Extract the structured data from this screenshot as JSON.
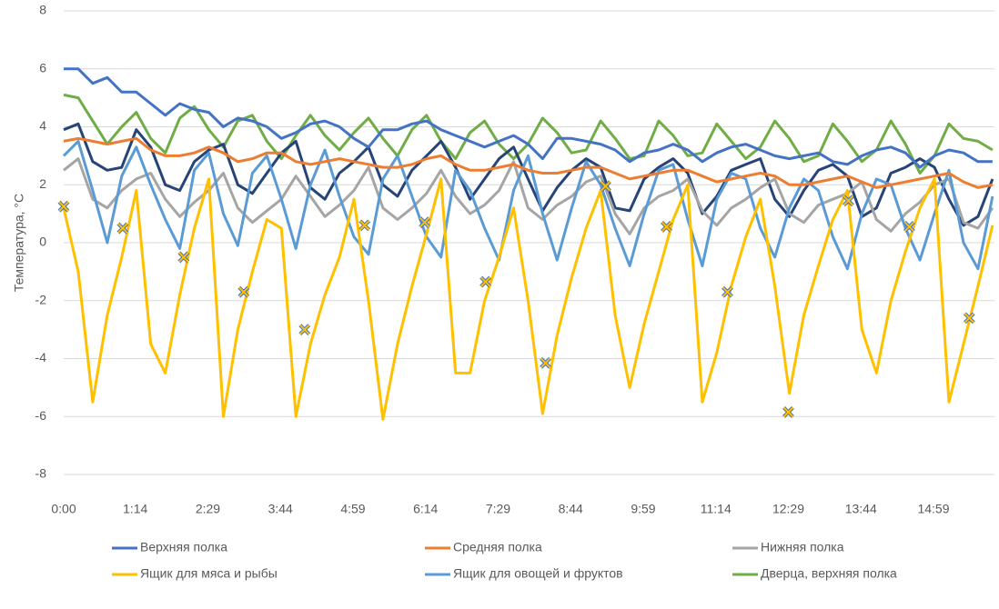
{
  "chart_data": {
    "type": "line",
    "y_label": "Температура, °C",
    "ylim": [
      -8,
      8
    ],
    "yticks": [
      -8,
      -6,
      -4,
      -2,
      0,
      2,
      4,
      6,
      8
    ],
    "grid": true,
    "xlim": [
      0,
      962
    ],
    "xticks": [
      {
        "value": 0,
        "label": "0:00"
      },
      {
        "value": 74,
        "label": "1:14"
      },
      {
        "value": 149,
        "label": "2:29"
      },
      {
        "value": 224,
        "label": "3:44"
      },
      {
        "value": 299,
        "label": "4:59"
      },
      {
        "value": 374,
        "label": "6:14"
      },
      {
        "value": 449,
        "label": "7:29"
      },
      {
        "value": 524,
        "label": "8:44"
      },
      {
        "value": 599,
        "label": "9:59"
      },
      {
        "value": 674,
        "label": "11:14"
      },
      {
        "value": 749,
        "label": "12:29"
      },
      {
        "value": 824,
        "label": "13:44"
      },
      {
        "value": 899,
        "label": "14:59"
      }
    ],
    "x": [
      0,
      15,
      30,
      45,
      60,
      75,
      90,
      105,
      120,
      135,
      150,
      165,
      180,
      195,
      210,
      225,
      240,
      255,
      270,
      285,
      300,
      315,
      330,
      345,
      360,
      375,
      390,
      405,
      420,
      435,
      450,
      465,
      480,
      495,
      510,
      525,
      540,
      555,
      570,
      585,
      600,
      615,
      630,
      645,
      660,
      675,
      690,
      705,
      720,
      735,
      750,
      765,
      780,
      795,
      810,
      825,
      840,
      855,
      870,
      885,
      900,
      915,
      930,
      945,
      960
    ],
    "series": [
      {
        "name": "Верхняя полка",
        "color": "#4472c4",
        "values": [
          6.0,
          6.0,
          5.5,
          5.7,
          5.2,
          5.2,
          4.8,
          4.4,
          4.8,
          4.6,
          4.5,
          4.0,
          4.3,
          4.2,
          4.0,
          3.6,
          3.8,
          4.1,
          4.2,
          4.0,
          3.6,
          3.3,
          3.9,
          3.9,
          4.1,
          4.2,
          3.9,
          3.7,
          3.5,
          3.3,
          3.5,
          3.7,
          3.4,
          2.9,
          3.6,
          3.6,
          3.5,
          3.4,
          3.2,
          2.8,
          3.1,
          3.2,
          3.4,
          3.2,
          2.8,
          3.1,
          3.3,
          3.4,
          3.2,
          3.0,
          2.9,
          3.0,
          3.1,
          2.8,
          2.7,
          3.0,
          3.2,
          3.3,
          3.1,
          2.6,
          3.0,
          3.2,
          3.1,
          2.8,
          2.8
        ]
      },
      {
        "name": "Средняя полка",
        "color": "#ed7d31",
        "values": [
          3.5,
          3.6,
          3.5,
          3.4,
          3.5,
          3.6,
          3.2,
          3.0,
          3.0,
          3.1,
          3.3,
          3.1,
          2.8,
          2.9,
          3.1,
          3.1,
          2.8,
          2.7,
          2.8,
          2.9,
          2.8,
          2.7,
          2.6,
          2.6,
          2.7,
          2.9,
          3.0,
          2.7,
          2.5,
          2.5,
          2.6,
          2.7,
          2.5,
          2.4,
          2.4,
          2.5,
          2.6,
          2.6,
          2.4,
          2.2,
          2.3,
          2.4,
          2.5,
          2.5,
          2.3,
          2.1,
          2.2,
          2.3,
          2.4,
          2.3,
          2.0,
          2.0,
          2.1,
          2.2,
          2.3,
          2.1,
          1.9,
          2.0,
          2.1,
          2.2,
          2.3,
          2.4,
          2.1,
          1.9,
          2.0
        ]
      },
      {
        "name": "Нижняя полка",
        "color": "#a5a5a5",
        "values": [
          2.5,
          2.9,
          1.5,
          1.2,
          1.8,
          2.2,
          2.4,
          1.5,
          0.9,
          1.4,
          1.8,
          2.4,
          1.2,
          0.7,
          1.1,
          1.5,
          2.3,
          1.6,
          0.9,
          1.3,
          1.8,
          2.6,
          1.2,
          0.8,
          1.2,
          1.7,
          2.5,
          1.6,
          1.0,
          1.3,
          1.8,
          2.8,
          1.2,
          0.8,
          1.3,
          1.6,
          2.1,
          2.3,
          1.0,
          0.3,
          1.2,
          1.6,
          1.8,
          2.2,
          1.1,
          0.6,
          1.2,
          1.5,
          1.9,
          2.2,
          1.0,
          0.7,
          1.3,
          1.5,
          1.7,
          2.1,
          0.8,
          0.4,
          1.0,
          1.4,
          2.0,
          2.2,
          0.7,
          0.5,
          1.2
        ]
      },
      {
        "name": "Ящик для мяса и рыбы",
        "color": "#ffc000",
        "values": [
          1.2,
          -1.0,
          -5.5,
          -2.5,
          -0.5,
          1.8,
          -3.5,
          -4.5,
          -1.8,
          0.5,
          2.2,
          -6.0,
          -3.0,
          -1.0,
          0.8,
          0.5,
          -6.0,
          -3.5,
          -1.8,
          -0.5,
          1.5,
          -2.0,
          -6.1,
          -3.5,
          -1.5,
          0.3,
          2.2,
          -4.5,
          -4.5,
          -2.0,
          -0.5,
          1.2,
          -2.0,
          -5.9,
          -3.2,
          -1.2,
          0.5,
          1.8,
          -2.5,
          -5.0,
          -2.8,
          -1.0,
          0.8,
          2.0,
          -5.5,
          -3.8,
          -1.5,
          0.2,
          1.5,
          -1.5,
          -5.2,
          -2.5,
          -0.8,
          0.8,
          1.8,
          -3.0,
          -4.5,
          -2.0,
          -0.3,
          1.2,
          2.2,
          -5.5,
          -3.5,
          -1.5,
          0.6
        ]
      },
      {
        "name": "Ящик для овощей и фруктов",
        "color": "#5b9bd5",
        "values": [
          3.0,
          3.5,
          1.8,
          0.0,
          2.3,
          3.3,
          2.0,
          0.8,
          -0.2,
          2.5,
          3.1,
          1.0,
          -0.1,
          2.4,
          3.0,
          1.5,
          -0.2,
          2.0,
          3.2,
          1.6,
          0.2,
          -0.4,
          2.2,
          3.0,
          1.6,
          0.2,
          -0.5,
          2.5,
          1.8,
          0.5,
          -0.6,
          1.8,
          3.0,
          1.0,
          -0.6,
          1.2,
          2.8,
          2.0,
          0.5,
          -0.8,
          1.0,
          2.5,
          2.7,
          0.8,
          -0.8,
          1.5,
          2.4,
          2.2,
          0.5,
          -0.5,
          1.2,
          2.2,
          1.8,
          0.2,
          -0.9,
          1.0,
          2.2,
          2.0,
          0.5,
          -0.6,
          1.0,
          2.5,
          0.0,
          -0.9,
          1.6
        ]
      },
      {
        "name": "Дверца, верхняя полка",
        "color": "#70ad47",
        "values": [
          5.1,
          5.0,
          4.2,
          3.4,
          4.0,
          4.5,
          3.6,
          3.1,
          4.3,
          4.7,
          3.9,
          3.3,
          4.2,
          4.4,
          3.5,
          2.9,
          3.7,
          4.4,
          3.7,
          3.2,
          3.8,
          4.3,
          3.6,
          3.0,
          3.9,
          4.4,
          3.5,
          2.9,
          3.8,
          4.2,
          3.4,
          2.9,
          3.4,
          4.3,
          3.8,
          3.1,
          3.2,
          4.2,
          3.6,
          2.9,
          3.0,
          4.2,
          3.7,
          3.0,
          3.1,
          4.1,
          3.5,
          2.9,
          3.3,
          4.2,
          3.6,
          2.8,
          3.0,
          4.1,
          3.5,
          2.8,
          3.2,
          4.2,
          3.4,
          2.4,
          3.0,
          4.1,
          3.6,
          3.5,
          3.2
        ]
      },
      {
        "color": "#264478",
        "values": [
          3.9,
          4.1,
          2.8,
          2.5,
          2.6,
          3.9,
          3.3,
          2.0,
          1.8,
          2.8,
          3.2,
          3.4,
          2.0,
          1.7,
          2.4,
          3.1,
          3.5,
          1.9,
          1.5,
          2.4,
          2.8,
          3.3,
          2.0,
          1.6,
          2.5,
          3.0,
          3.5,
          2.6,
          1.5,
          2.2,
          2.9,
          3.3,
          2.2,
          1.1,
          1.9,
          2.5,
          2.9,
          2.6,
          1.2,
          1.1,
          2.2,
          2.6,
          2.9,
          2.4,
          1.0,
          1.6,
          2.5,
          2.7,
          2.9,
          1.5,
          0.9,
          1.8,
          2.5,
          2.7,
          2.3,
          0.9,
          1.2,
          2.4,
          2.6,
          2.9,
          2.6,
          1.5,
          0.6,
          0.9,
          2.2
        ]
      },
      {
        "color": "#4472c4",
        "fill": "#ffc000",
        "line": false,
        "marker": "x",
        "x": [
          0,
          61,
          124,
          186,
          249,
          311,
          373,
          436,
          498,
          560,
          623,
          686,
          749,
          811,
          874,
          936
        ],
        "values": [
          1.25,
          0.5,
          -0.5,
          -1.7,
          -3.0,
          0.6,
          0.7,
          -1.35,
          -4.15,
          1.95,
          0.55,
          -1.7,
          -5.85,
          1.45,
          0.55,
          -2.6
        ]
      }
    ]
  }
}
